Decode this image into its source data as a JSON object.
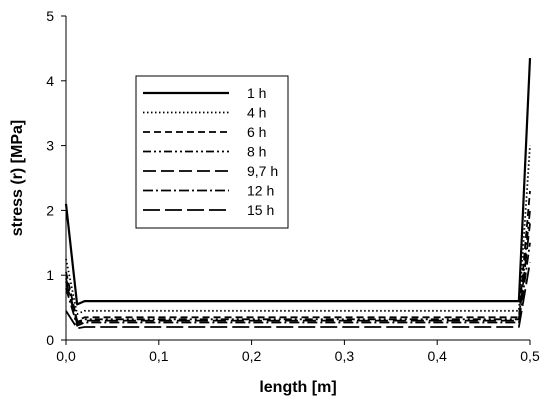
{
  "chart_data": {
    "type": "line",
    "xlabel": "length [m]",
    "ylabel": "stress (r) [MPa]",
    "xlim": [
      0,
      0.5
    ],
    "ylim": [
      0,
      5
    ],
    "x_ticks": [
      "0,0",
      "0,1",
      "0,2",
      "0,3",
      "0,4",
      "0,5"
    ],
    "y_ticks": [
      "0",
      "1",
      "2",
      "3",
      "4",
      "5"
    ],
    "grid": false,
    "legend": "top-left",
    "series": [
      {
        "name": "1 h",
        "style": "solid",
        "points": [
          [
            0.0,
            2.1
          ],
          [
            0.012,
            0.55
          ],
          [
            0.02,
            0.6
          ],
          [
            0.1,
            0.6
          ],
          [
            0.2,
            0.6
          ],
          [
            0.3,
            0.6
          ],
          [
            0.4,
            0.6
          ],
          [
            0.48,
            0.6
          ],
          [
            0.488,
            0.6
          ],
          [
            0.5,
            4.35
          ]
        ]
      },
      {
        "name": "4 h",
        "style": "dotted",
        "points": [
          [
            0.0,
            1.25
          ],
          [
            0.012,
            0.4
          ],
          [
            0.02,
            0.45
          ],
          [
            0.1,
            0.45
          ],
          [
            0.2,
            0.45
          ],
          [
            0.3,
            0.45
          ],
          [
            0.4,
            0.45
          ],
          [
            0.48,
            0.45
          ],
          [
            0.488,
            0.45
          ],
          [
            0.5,
            3.0
          ]
        ]
      },
      {
        "name": "6 h",
        "style": "short-dash",
        "points": [
          [
            0.0,
            1.05
          ],
          [
            0.012,
            0.3
          ],
          [
            0.02,
            0.35
          ],
          [
            0.1,
            0.35
          ],
          [
            0.2,
            0.35
          ],
          [
            0.3,
            0.35
          ],
          [
            0.4,
            0.35
          ],
          [
            0.48,
            0.35
          ],
          [
            0.488,
            0.35
          ],
          [
            0.5,
            2.3
          ]
        ]
      },
      {
        "name": "8 h",
        "style": "dash-dot-dot",
        "points": [
          [
            0.0,
            0.95
          ],
          [
            0.012,
            0.28
          ],
          [
            0.02,
            0.32
          ],
          [
            0.1,
            0.32
          ],
          [
            0.2,
            0.32
          ],
          [
            0.3,
            0.32
          ],
          [
            0.4,
            0.32
          ],
          [
            0.48,
            0.32
          ],
          [
            0.488,
            0.32
          ],
          [
            0.5,
            2.0
          ]
        ]
      },
      {
        "name": "9,7 h",
        "style": "long-dash",
        "points": [
          [
            0.0,
            0.9
          ],
          [
            0.012,
            0.25
          ],
          [
            0.02,
            0.3
          ],
          [
            0.1,
            0.3
          ],
          [
            0.2,
            0.3
          ],
          [
            0.3,
            0.3
          ],
          [
            0.4,
            0.3
          ],
          [
            0.48,
            0.3
          ],
          [
            0.488,
            0.3
          ],
          [
            0.5,
            1.8
          ]
        ]
      },
      {
        "name": "12 h",
        "style": "dash-dot",
        "points": [
          [
            0.0,
            0.8
          ],
          [
            0.012,
            0.22
          ],
          [
            0.02,
            0.27
          ],
          [
            0.1,
            0.27
          ],
          [
            0.2,
            0.27
          ],
          [
            0.3,
            0.27
          ],
          [
            0.4,
            0.27
          ],
          [
            0.48,
            0.27
          ],
          [
            0.488,
            0.27
          ],
          [
            0.5,
            1.5
          ]
        ]
      },
      {
        "name": "15 h",
        "style": "very-long-dash",
        "points": [
          [
            0.0,
            0.45
          ],
          [
            0.012,
            0.18
          ],
          [
            0.02,
            0.2
          ],
          [
            0.1,
            0.2
          ],
          [
            0.2,
            0.2
          ],
          [
            0.3,
            0.2
          ],
          [
            0.4,
            0.2
          ],
          [
            0.48,
            0.2
          ],
          [
            0.488,
            0.2
          ],
          [
            0.5,
            1.2
          ]
        ]
      }
    ]
  }
}
